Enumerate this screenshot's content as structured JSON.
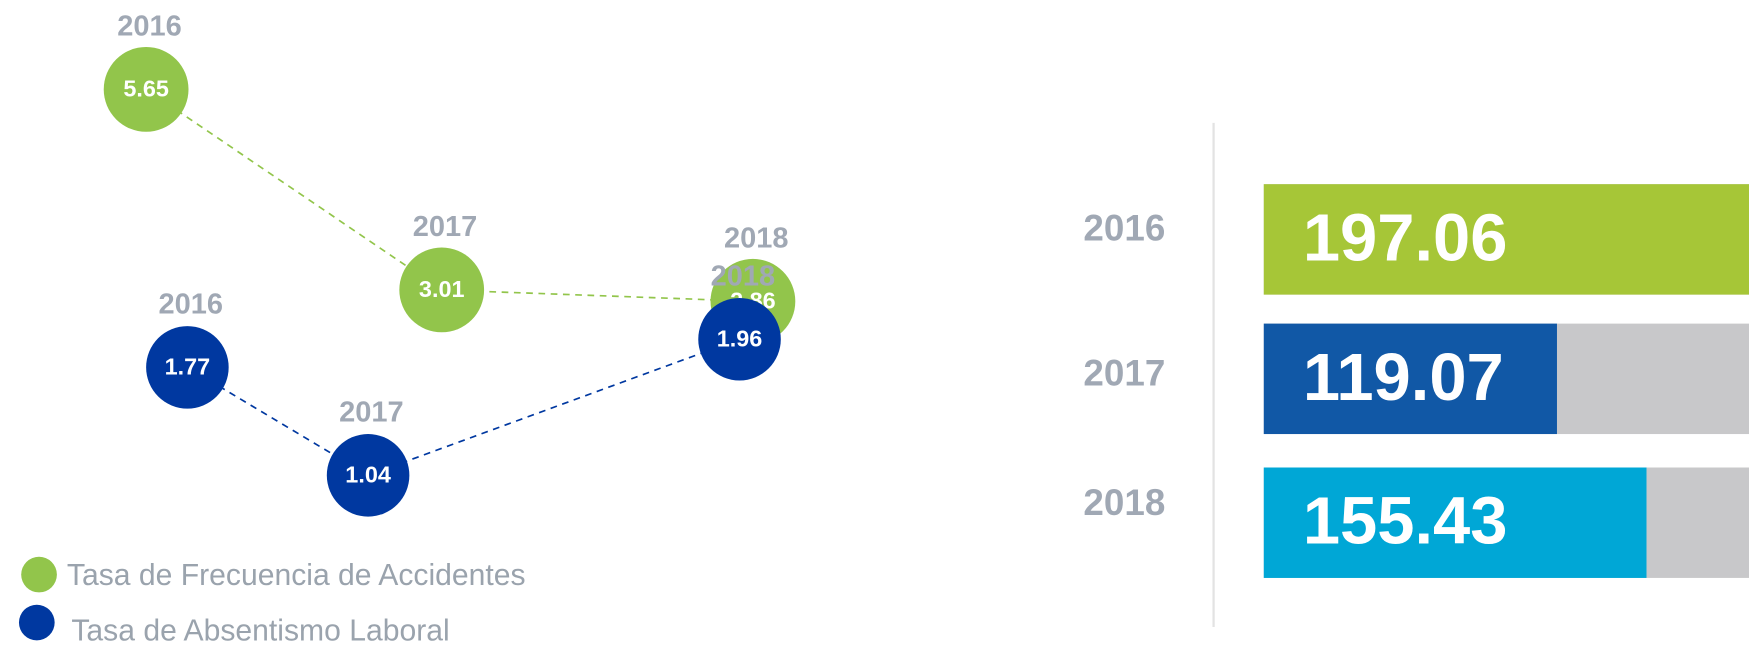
{
  "chart_data": [
    {
      "type": "line",
      "categories": [
        "2016",
        "2017",
        "2018"
      ],
      "series": [
        {
          "name": "Tasa de Frecuencia de Accidentes",
          "color": "#92c54b",
          "values": [
            5.65,
            3.01,
            2.86
          ]
        },
        {
          "name": "Tasa de Absentismo Laboral",
          "color": "#0038a0",
          "values": [
            1.77,
            1.04,
            1.96
          ]
        }
      ]
    },
    {
      "type": "bar",
      "categories": [
        "2016",
        "2017",
        "2018"
      ],
      "values": [
        197.06,
        119.07,
        155.43
      ],
      "colors": [
        "#a6c637",
        "#1158a6",
        "#00a7d6"
      ],
      "track_color": "#c8c8ca"
    }
  ]
}
